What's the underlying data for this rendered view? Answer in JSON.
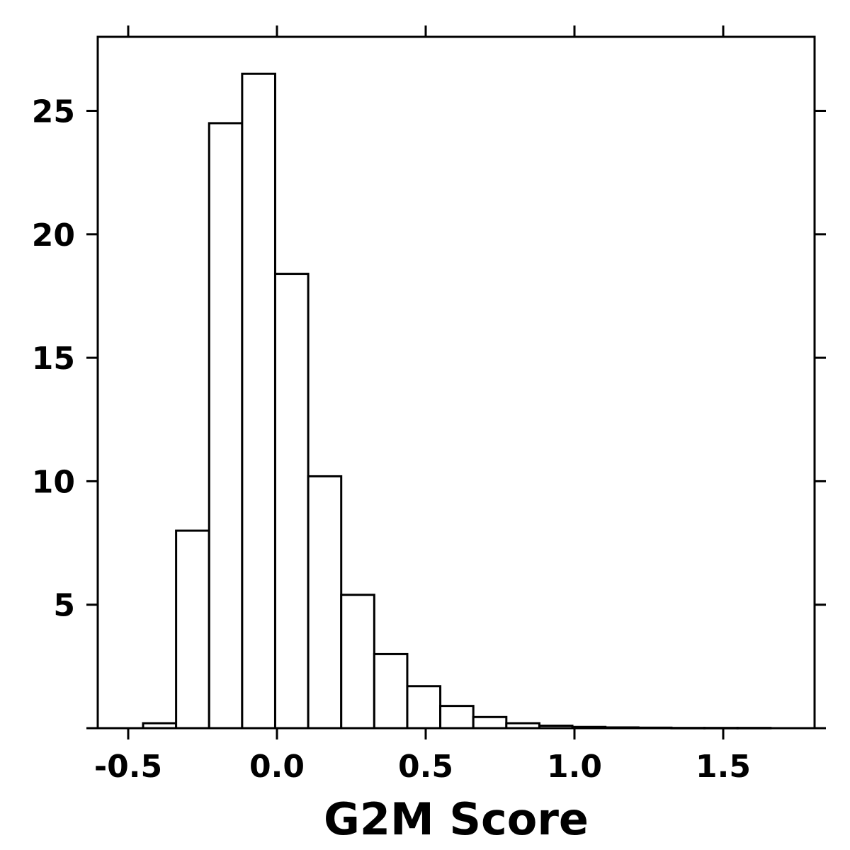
{
  "chart_data": {
    "type": "bar",
    "xlabel": "G2M Score",
    "ylabel": "",
    "xlim": [
      -0.6,
      1.83
    ],
    "ylim": [
      0,
      28
    ],
    "xticks": [
      -0.5,
      0.0,
      0.5,
      1.0,
      1.5
    ],
    "xtick_labels": [
      "-0.5",
      "0.0",
      "0.5",
      "1.0",
      "1.5"
    ],
    "yticks": [
      5,
      10,
      15,
      20,
      25
    ],
    "ytick_labels": [
      "5",
      "10",
      "15",
      "20",
      "25"
    ],
    "bin_edges": [
      -0.45,
      -0.339,
      -0.228,
      -0.117,
      -0.006,
      0.105,
      0.216,
      0.327,
      0.438,
      0.549,
      0.66,
      0.771,
      0.882,
      0.993,
      1.104,
      1.215,
      1.326,
      1.437,
      1.548,
      1.659
    ],
    "values": [
      0.2,
      8.0,
      24.5,
      26.5,
      18.4,
      10.2,
      5.4,
      3.0,
      1.7,
      0.9,
      0.45,
      0.2,
      0.1,
      0.05,
      0.03,
      0.02,
      0.01,
      0.01,
      0.01
    ],
    "bar_fill": "#ffffff",
    "bar_edge": "#000000",
    "grid": false,
    "frame": "box with ticks on all sides"
  }
}
